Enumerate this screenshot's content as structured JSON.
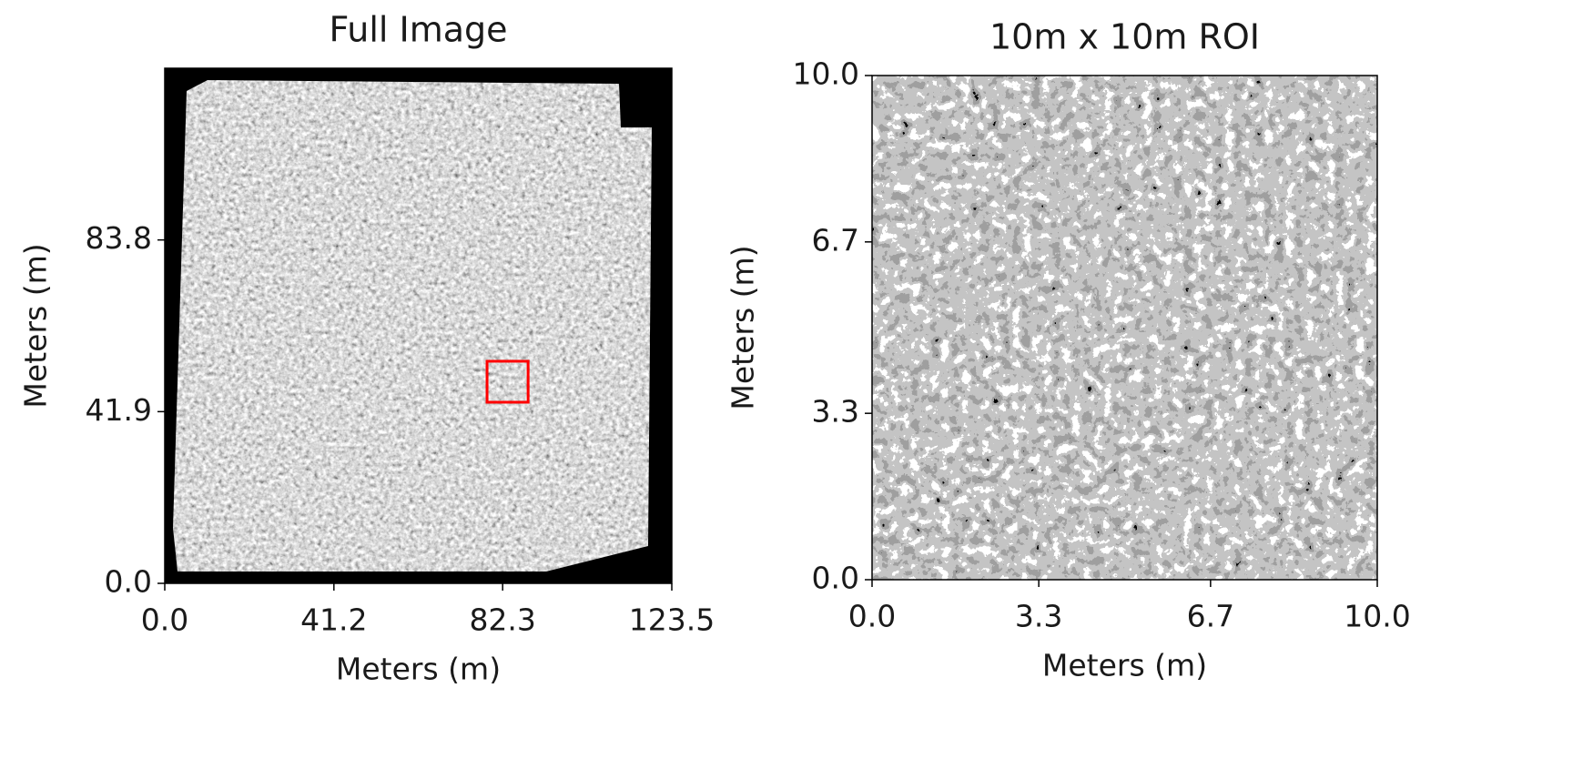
{
  "chart_data": [
    {
      "type": "image",
      "title": "Full Image",
      "xlabel": "Meters (m)",
      "ylabel": "Meters (m)",
      "xlim": [
        0,
        123.5
      ],
      "xticks": [
        {
          "value": 0,
          "label": "0.0"
        },
        41.2,
        82.3,
        123.5
      ],
      "ylim": [
        0,
        125.7
      ],
      "yticks": [
        {
          "value": 0,
          "label": "0.0"
        },
        41.9,
        83.8
      ],
      "roi": {
        "x": 78.5,
        "y": 44.2,
        "width": 10,
        "height": 10,
        "color": "#ff0000"
      }
    },
    {
      "type": "image",
      "title": "10m x 10m ROI",
      "xlabel": "Meters (m)",
      "ylabel": "Meters (m)",
      "xlim": [
        0,
        10
      ],
      "xticks": [
        {
          "value": 0,
          "label": "0.0"
        },
        3.3,
        6.7,
        {
          "value": 10,
          "label": "10.0"
        }
      ],
      "ylim": [
        0,
        10
      ],
      "yticks": [
        {
          "value": 0,
          "label": "0.0"
        },
        3.3,
        6.7,
        {
          "value": 10,
          "label": "10.0"
        }
      ]
    }
  ]
}
